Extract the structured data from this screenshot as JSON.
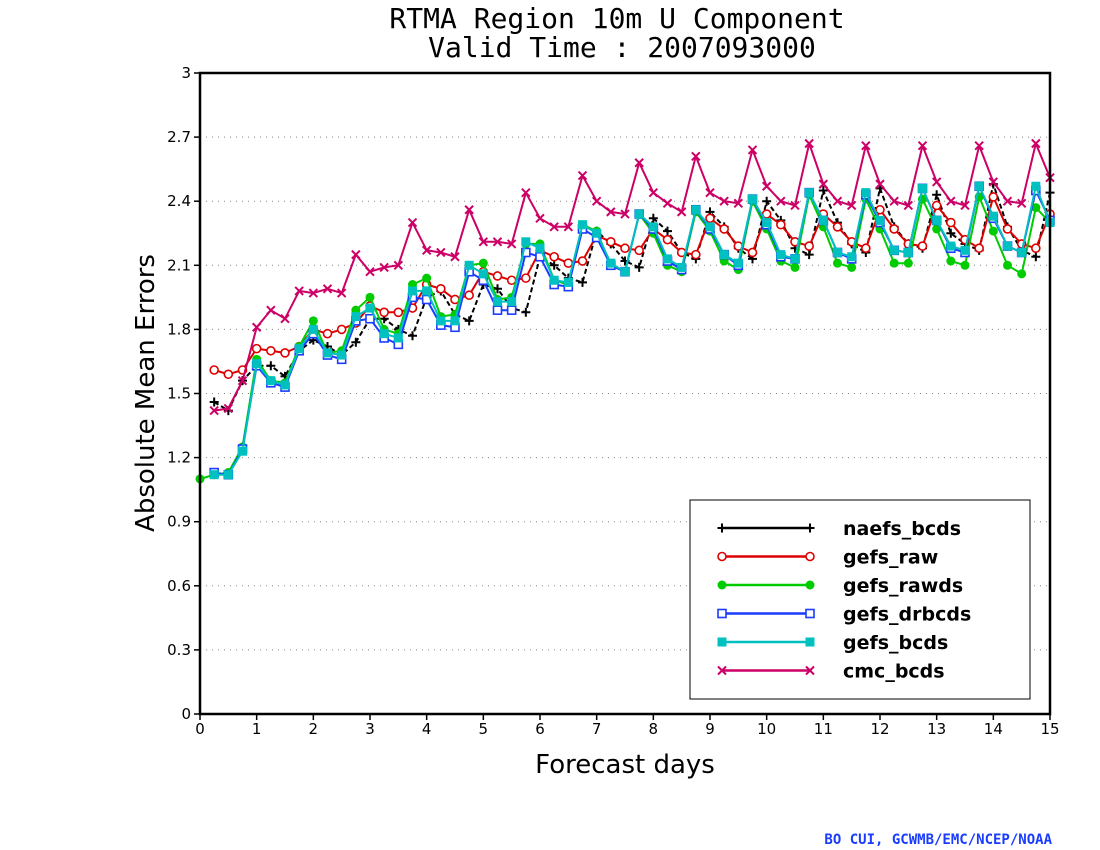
{
  "chart_data": {
    "type": "line",
    "title": [
      "RTMA Region 10m U Component",
      "Valid Time : 2007093000"
    ],
    "xlabel": "Forecast days",
    "ylabel": "Absolute Mean Errors",
    "xlim": [
      0,
      15
    ],
    "ylim": [
      0,
      3
    ],
    "xticks": [
      0,
      1,
      2,
      3,
      4,
      5,
      6,
      7,
      8,
      9,
      10,
      11,
      12,
      13,
      14,
      15
    ],
    "yticks": [
      0,
      0.3,
      0.6,
      0.9,
      1.2,
      1.5,
      1.8,
      2.1,
      2.4,
      2.7,
      3
    ],
    "ytick_labels": [
      "0",
      "0.3",
      "0.6",
      "0.9",
      "1.2",
      "1.5",
      "1.8",
      "2.1",
      "2.4",
      "2.7",
      "3"
    ],
    "grid": "horizontal-dotted",
    "legend_position": "bottom-right",
    "x": [
      0,
      0.25,
      0.5,
      0.75,
      1,
      1.25,
      1.5,
      1.75,
      2,
      2.25,
      2.5,
      2.75,
      3,
      3.25,
      3.5,
      3.75,
      4,
      4.25,
      4.5,
      4.75,
      5,
      5.25,
      5.5,
      5.75,
      6,
      6.25,
      6.5,
      6.75,
      7,
      7.25,
      7.5,
      7.75,
      8,
      8.25,
      8.5,
      8.75,
      9,
      9.25,
      9.5,
      9.75,
      10,
      10.25,
      10.5,
      10.75,
      11,
      11.25,
      11.5,
      11.75,
      12,
      12.25,
      12.5,
      12.75,
      13,
      13.25,
      13.5,
      13.75,
      14,
      14.25,
      14.5,
      14.75,
      15
    ],
    "series": [
      {
        "name": "naefs_bcds",
        "color": "#000000",
        "marker": "plus",
        "dash": "5,3",
        "values": [
          null,
          1.46,
          1.42,
          1.56,
          1.63,
          1.63,
          1.58,
          1.7,
          1.75,
          1.72,
          1.68,
          1.74,
          1.85,
          1.85,
          1.8,
          1.77,
          1.95,
          1.98,
          1.87,
          1.84,
          2.01,
          1.99,
          1.9,
          1.88,
          2.14,
          2.1,
          2.04,
          2.02,
          2.26,
          2.2,
          2.12,
          2.09,
          2.32,
          2.26,
          2.16,
          2.13,
          2.35,
          2.28,
          2.18,
          2.13,
          2.4,
          2.31,
          2.18,
          2.15,
          2.45,
          2.3,
          2.2,
          2.16,
          2.46,
          2.28,
          2.2,
          2.18,
          2.43,
          2.25,
          2.2,
          2.17,
          2.48,
          2.28,
          2.17,
          2.14,
          2.44
        ]
      },
      {
        "name": "gefs_raw",
        "color": "#dd0000",
        "marker": "circle",
        "values": [
          null,
          1.61,
          1.59,
          1.61,
          1.71,
          1.7,
          1.69,
          1.72,
          1.8,
          1.78,
          1.8,
          1.83,
          1.91,
          1.88,
          1.88,
          1.9,
          2.01,
          1.99,
          1.94,
          1.96,
          2.07,
          2.05,
          2.03,
          2.04,
          2.17,
          2.14,
          2.11,
          2.12,
          2.24,
          2.21,
          2.18,
          2.17,
          2.27,
          2.22,
          2.16,
          2.15,
          2.32,
          2.27,
          2.19,
          2.16,
          2.34,
          2.29,
          2.21,
          2.19,
          2.34,
          2.28,
          2.21,
          2.18,
          2.36,
          2.27,
          2.2,
          2.19,
          2.38,
          2.3,
          2.22,
          2.18,
          2.42,
          2.27,
          2.2,
          2.18,
          2.34
        ]
      },
      {
        "name": "gefs_rawds",
        "color": "#00cc00",
        "marker": "filled-circle",
        "values": [
          1.1,
          1.12,
          1.13,
          1.25,
          1.66,
          1.56,
          1.55,
          1.72,
          1.84,
          1.69,
          1.7,
          1.89,
          1.95,
          1.8,
          1.78,
          2.01,
          2.04,
          1.86,
          1.87,
          2.1,
          2.11,
          1.94,
          1.95,
          2.2,
          2.2,
          2.03,
          2.01,
          2.29,
          2.26,
          2.1,
          2.07,
          2.34,
          2.25,
          2.1,
          2.07,
          2.35,
          2.26,
          2.12,
          2.08,
          2.4,
          2.27,
          2.12,
          2.09,
          2.43,
          2.28,
          2.11,
          2.09,
          2.41,
          2.27,
          2.11,
          2.11,
          2.41,
          2.27,
          2.12,
          2.1,
          2.42,
          2.26,
          2.1,
          2.06,
          2.37,
          2.3
        ]
      },
      {
        "name": "gefs_drbcds",
        "color": "#1a3cff",
        "marker": "square",
        "values": [
          null,
          1.13,
          1.12,
          1.24,
          1.63,
          1.55,
          1.53,
          1.7,
          1.78,
          1.68,
          1.66,
          1.84,
          1.85,
          1.76,
          1.73,
          1.95,
          1.94,
          1.82,
          1.81,
          2.07,
          2.03,
          1.89,
          1.89,
          2.16,
          2.14,
          2.01,
          2.0,
          2.27,
          2.23,
          2.1,
          2.07,
          2.34,
          2.27,
          2.12,
          2.08,
          2.36,
          2.27,
          2.15,
          2.1,
          2.41,
          2.29,
          2.14,
          2.13,
          2.44,
          2.31,
          2.16,
          2.13,
          2.43,
          2.3,
          2.17,
          2.16,
          2.46,
          2.31,
          2.18,
          2.16,
          2.47,
          2.32,
          2.19,
          2.16,
          2.45,
          2.31
        ]
      },
      {
        "name": "gefs_bcds",
        "color": "#00c0c0",
        "marker": "filled-square",
        "values": [
          null,
          1.12,
          1.12,
          1.23,
          1.64,
          1.56,
          1.54,
          1.71,
          1.8,
          1.69,
          1.68,
          1.86,
          1.9,
          1.78,
          1.76,
          1.98,
          1.98,
          1.84,
          1.84,
          2.1,
          2.06,
          1.93,
          1.93,
          2.21,
          2.18,
          2.03,
          2.02,
          2.29,
          2.25,
          2.11,
          2.07,
          2.34,
          2.28,
          2.13,
          2.09,
          2.36,
          2.28,
          2.15,
          2.11,
          2.41,
          2.3,
          2.15,
          2.13,
          2.44,
          2.31,
          2.16,
          2.14,
          2.44,
          2.31,
          2.17,
          2.16,
          2.46,
          2.31,
          2.19,
          2.17,
          2.47,
          2.33,
          2.19,
          2.16,
          2.47,
          2.3
        ]
      },
      {
        "name": "cmc_bcds",
        "color": "#cc0066",
        "marker": "x",
        "values": [
          null,
          1.42,
          1.43,
          1.56,
          1.81,
          1.89,
          1.85,
          1.98,
          1.97,
          1.99,
          1.97,
          2.15,
          2.07,
          2.09,
          2.1,
          2.3,
          2.17,
          2.16,
          2.14,
          2.36,
          2.21,
          2.21,
          2.2,
          2.44,
          2.32,
          2.28,
          2.28,
          2.52,
          2.4,
          2.35,
          2.34,
          2.58,
          2.44,
          2.39,
          2.35,
          2.61,
          2.44,
          2.4,
          2.39,
          2.64,
          2.47,
          2.4,
          2.38,
          2.67,
          2.48,
          2.4,
          2.38,
          2.66,
          2.48,
          2.4,
          2.38,
          2.66,
          2.49,
          2.4,
          2.38,
          2.66,
          2.49,
          2.4,
          2.39,
          2.67,
          2.51
        ]
      }
    ]
  },
  "credit": "BO CUI, GCWMB/EMC/NCEP/NOAA"
}
